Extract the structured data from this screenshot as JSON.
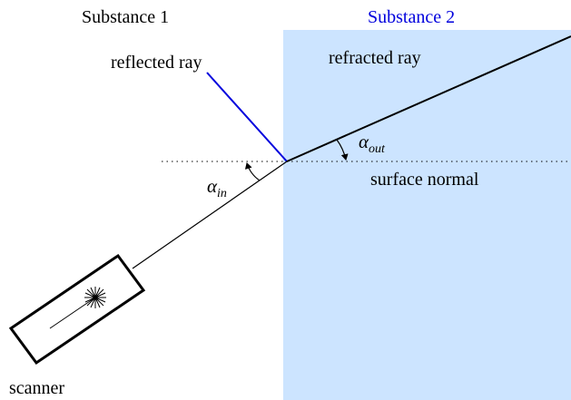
{
  "substance_1": "Substance 1",
  "substance_2": "Substance 2",
  "reflected_ray": "reflected ray",
  "refracted_ray": "refracted ray",
  "surface_normal": "surface normal",
  "scanner": "scanner",
  "angle_in": {
    "symbol": "α",
    "subscript": "in"
  },
  "angle_out": {
    "symbol": "α",
    "subscript": "out"
  }
}
